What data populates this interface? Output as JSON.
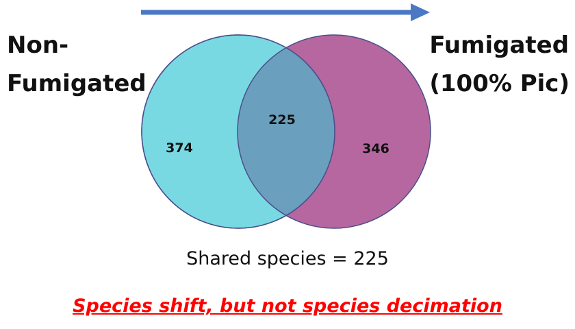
{
  "labels": {
    "left_line1": "Non-",
    "left_line2": "Fumigated",
    "right_line1": "Fumigated",
    "right_line2": "(100% Pic)"
  },
  "venn": {
    "left_only": "374",
    "overlap": "225",
    "right_only": "346",
    "left_color": "#5fd3e0",
    "right_color": "#a83a8c",
    "overlap_color": "#4f8fb0",
    "arrow_color": "#4a78c4"
  },
  "shared_text": "Shared species = 225",
  "conclusion": "Species shift, but not species decimation",
  "conclusion_color": "#ff0000"
}
